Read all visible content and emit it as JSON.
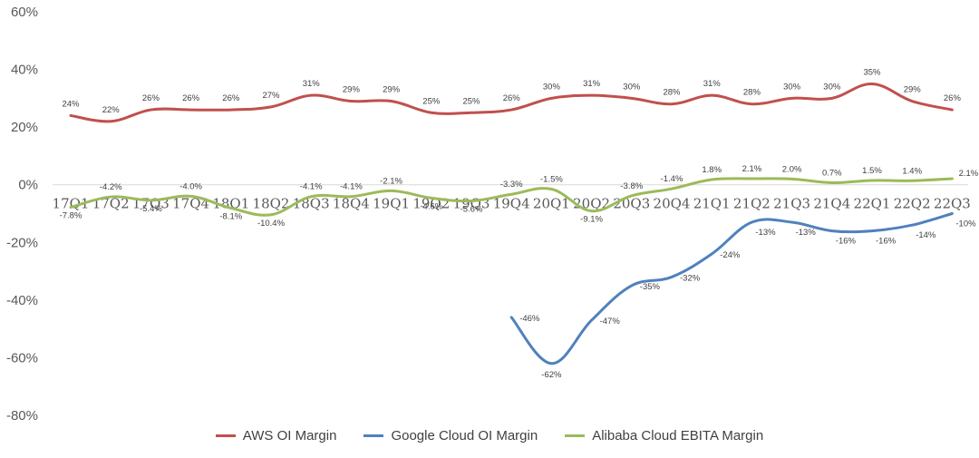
{
  "chart_data": {
    "type": "line",
    "title": "",
    "xlabel": "",
    "ylabel": "",
    "ylim": [
      -80,
      60
    ],
    "yticks": [
      60,
      40,
      20,
      0,
      -20,
      -40,
      -60,
      -80
    ],
    "ytick_labels": [
      "60%",
      "40%",
      "20%",
      "0%",
      "-20%",
      "-40%",
      "-60%",
      "-80%"
    ],
    "grid": false,
    "legend": "bottom",
    "categories": [
      "17Q1",
      "17Q2",
      "17Q3",
      "17Q4",
      "18Q1",
      "18Q2",
      "18Q3",
      "18Q4",
      "19Q1",
      "19Q2",
      "19Q3",
      "19Q4",
      "20Q1",
      "20Q2",
      "20Q3",
      "20Q4",
      "21Q1",
      "21Q2",
      "21Q3",
      "21Q4",
      "22Q1",
      "22Q2",
      "22Q3"
    ],
    "series": [
      {
        "name": "AWS OI Margin",
        "color": "#c0504d",
        "values": [
          24,
          22,
          26,
          26,
          26,
          27,
          31,
          29,
          29,
          25,
          25,
          26,
          30,
          31,
          30,
          28,
          31,
          28,
          30,
          30,
          35,
          29,
          26
        ],
        "labels": [
          "24%",
          "22%",
          "26%",
          "26%",
          "26%",
          "27%",
          "31%",
          "29%",
          "29%",
          "25%",
          "25%",
          "26%",
          "30%",
          "31%",
          "30%",
          "28%",
          "31%",
          "28%",
          "30%",
          "30%",
          "35%",
          "29%",
          "26%"
        ]
      },
      {
        "name": "Google Cloud OI Margin",
        "color": "#4f81bd",
        "values": [
          null,
          null,
          null,
          null,
          null,
          null,
          null,
          null,
          null,
          null,
          null,
          -46,
          -62,
          -47,
          -35,
          -32,
          -24,
          -13,
          -13,
          -16,
          -16,
          -14,
          -10
        ],
        "labels": [
          null,
          null,
          null,
          null,
          null,
          null,
          null,
          null,
          null,
          null,
          null,
          "-46%",
          "-62%",
          "-47%",
          "-35%",
          "-32%",
          "-24%",
          "-13%",
          "-13%",
          "-16%",
          "-16%",
          "-14%",
          "-10%"
        ]
      },
      {
        "name": "Alibaba Cloud EBITA Margin",
        "color": "#9bbb59",
        "values": [
          -7.8,
          -4.2,
          -5.4,
          -4.0,
          -8.1,
          -10.4,
          -4.1,
          -4.1,
          -2.1,
          -4.6,
          -5.6,
          -3.3,
          -1.5,
          -9.1,
          -3.8,
          -1.4,
          1.8,
          2.1,
          2.0,
          0.7,
          1.5,
          1.4,
          2.1
        ],
        "labels": [
          "-7.8%",
          "-4.2%",
          "-5.4%",
          "-4.0%",
          "-8.1%",
          "-10.4%",
          "-4.1%",
          "-4.1%",
          "-2.1%",
          "-4.6%",
          "-5.6%",
          "-3.3%",
          "-1.5%",
          "-9.1%",
          "-3.8%",
          "-1.4%",
          "1.8%",
          "2.1%",
          "2.0%",
          "0.7%",
          "1.5%",
          "1.4%",
          "2.1%"
        ]
      }
    ]
  }
}
